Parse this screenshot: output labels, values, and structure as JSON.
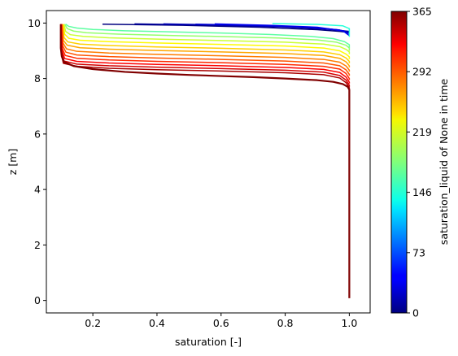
{
  "chart_data": {
    "type": "line",
    "title": "",
    "xlabel": "saturation [-]",
    "ylabel": "z [m]",
    "xlim": [
      0.055,
      1.065
    ],
    "ylim": [
      -0.45,
      10.45
    ],
    "grid": false,
    "x_ticks": [
      {
        "value": 0.2,
        "label": "0.2"
      },
      {
        "value": 0.4,
        "label": "0.4"
      },
      {
        "value": 0.6,
        "label": "0.6"
      },
      {
        "value": 0.8,
        "label": "0.8"
      },
      {
        "value": 1.0,
        "label": "1.0"
      }
    ],
    "y_ticks": [
      {
        "value": 0,
        "label": "0"
      },
      {
        "value": 2,
        "label": "2"
      },
      {
        "value": 4,
        "label": "4"
      },
      {
        "value": 6,
        "label": "6"
      },
      {
        "value": 8,
        "label": "8"
      },
      {
        "value": 10,
        "label": "10"
      }
    ],
    "colorbar": {
      "label": "saturation_liquid of None in time",
      "colormap": "jet",
      "range": [
        0,
        365
      ],
      "ticks": [
        {
          "value": 0,
          "label": "0"
        },
        {
          "value": 73,
          "label": "73"
        },
        {
          "value": 146,
          "label": "146"
        },
        {
          "value": 219,
          "label": "219"
        },
        {
          "value": 292,
          "label": "292"
        },
        {
          "value": 365,
          "label": "365"
        }
      ]
    },
    "series": [
      {
        "time": 0,
        "x": [
          0.23,
          0.48,
          0.72,
          0.9,
          0.97,
          1.0
        ],
        "y": [
          9.96,
          9.92,
          9.85,
          9.76,
          9.7,
          9.66
        ]
      },
      {
        "time": 10,
        "x": [
          0.33,
          0.55,
          0.8,
          0.93,
          1.0
        ],
        "y": [
          9.97,
          9.93,
          9.86,
          9.78,
          9.7
        ]
      },
      {
        "time": 20,
        "x": [
          0.42,
          0.62,
          0.85,
          0.96,
          1.0
        ],
        "y": [
          9.97,
          9.93,
          9.85,
          9.76,
          9.68
        ]
      },
      {
        "time": 30,
        "x": [
          0.52,
          0.7,
          0.88,
          0.97,
          1.0
        ],
        "y": [
          9.96,
          9.92,
          9.85,
          9.75,
          9.62
        ]
      },
      {
        "time": 40,
        "x": [
          0.58,
          0.75,
          0.9,
          0.98,
          1.0
        ],
        "y": [
          9.97,
          9.92,
          9.85,
          9.72,
          9.55
        ]
      },
      {
        "time": 150,
        "x": [
          0.76,
          0.9,
          0.98,
          1.0,
          1.0
        ],
        "y": [
          9.98,
          9.95,
          9.9,
          9.8,
          9.5
        ]
      },
      {
        "time": 170,
        "x": [
          0.115,
          0.125,
          0.15,
          0.2,
          0.3,
          0.45,
          0.6,
          0.75,
          0.88,
          0.95,
          0.985,
          1.0,
          1.0
        ],
        "y": [
          9.96,
          9.88,
          9.82,
          9.77,
          9.72,
          9.68,
          9.64,
          9.59,
          9.52,
          9.44,
          9.33,
          9.22,
          9.1
        ]
      },
      {
        "time": 190,
        "x": [
          0.112,
          0.12,
          0.14,
          0.18,
          0.28,
          0.45,
          0.62,
          0.78,
          0.9,
          0.96,
          0.99,
          1.0,
          1.0
        ],
        "y": [
          9.96,
          9.8,
          9.71,
          9.65,
          9.6,
          9.55,
          9.51,
          9.46,
          9.39,
          9.31,
          9.2,
          9.1,
          9.0
        ]
      },
      {
        "time": 210,
        "x": [
          0.11,
          0.115,
          0.13,
          0.17,
          0.25,
          0.4,
          0.6,
          0.8,
          0.92,
          0.97,
          0.99,
          1.0,
          1.0
        ],
        "y": [
          9.96,
          9.7,
          9.58,
          9.52,
          9.47,
          9.42,
          9.37,
          9.31,
          9.24,
          9.15,
          9.05,
          8.96,
          8.88
        ]
      },
      {
        "time": 230,
        "x": [
          0.108,
          0.112,
          0.125,
          0.16,
          0.25,
          0.4,
          0.6,
          0.8,
          0.92,
          0.97,
          0.99,
          1.0,
          1.0
        ],
        "y": [
          9.96,
          9.6,
          9.45,
          9.38,
          9.33,
          9.28,
          9.23,
          9.17,
          9.1,
          9.0,
          8.88,
          8.78,
          8.7
        ]
      },
      {
        "time": 245,
        "x": [
          0.106,
          0.11,
          0.122,
          0.16,
          0.25,
          0.4,
          0.6,
          0.8,
          0.92,
          0.97,
          0.99,
          1.0,
          1.0
        ],
        "y": [
          9.96,
          9.48,
          9.32,
          9.24,
          9.19,
          9.14,
          9.09,
          9.03,
          8.96,
          8.86,
          8.74,
          8.62,
          8.55
        ]
      },
      {
        "time": 260,
        "x": [
          0.105,
          0.108,
          0.12,
          0.16,
          0.25,
          0.4,
          0.6,
          0.8,
          0.92,
          0.97,
          0.99,
          1.0,
          1.0
        ],
        "y": [
          9.96,
          9.38,
          9.2,
          9.11,
          9.06,
          9.01,
          8.96,
          8.9,
          8.83,
          8.73,
          8.6,
          8.46,
          8.4
        ]
      },
      {
        "time": 275,
        "x": [
          0.104,
          0.107,
          0.118,
          0.15,
          0.25,
          0.4,
          0.6,
          0.8,
          0.92,
          0.97,
          0.99,
          1.0,
          1.0
        ],
        "y": [
          9.96,
          9.28,
          9.07,
          8.98,
          8.92,
          8.87,
          8.82,
          8.76,
          8.69,
          8.59,
          8.45,
          8.3,
          8.25
        ]
      },
      {
        "time": 290,
        "x": [
          0.103,
          0.106,
          0.116,
          0.15,
          0.25,
          0.4,
          0.6,
          0.8,
          0.92,
          0.97,
          0.99,
          1.0,
          1.0
        ],
        "y": [
          9.96,
          9.18,
          8.95,
          8.85,
          8.79,
          8.74,
          8.69,
          8.63,
          8.56,
          8.46,
          8.31,
          8.15,
          8.1
        ]
      },
      {
        "time": 305,
        "x": [
          0.102,
          0.105,
          0.114,
          0.15,
          0.25,
          0.4,
          0.6,
          0.8,
          0.92,
          0.97,
          0.99,
          1.0,
          1.0
        ],
        "y": [
          9.96,
          9.08,
          8.83,
          8.73,
          8.67,
          8.62,
          8.57,
          8.51,
          8.44,
          8.34,
          8.18,
          8.0,
          7.95
        ]
      },
      {
        "time": 320,
        "x": [
          0.101,
          0.104,
          0.112,
          0.15,
          0.25,
          0.4,
          0.6,
          0.8,
          0.92,
          0.97,
          0.99,
          1.0,
          1.0
        ],
        "y": [
          9.96,
          9.0,
          8.72,
          8.62,
          8.56,
          8.51,
          8.46,
          8.4,
          8.33,
          8.22,
          8.05,
          7.87,
          7.82
        ]
      },
      {
        "time": 335,
        "x": [
          0.1,
          0.103,
          0.11,
          0.15,
          0.25,
          0.4,
          0.6,
          0.8,
          0.92,
          0.97,
          0.99,
          1.0,
          1.0
        ],
        "y": [
          9.96,
          8.92,
          8.63,
          8.52,
          8.46,
          8.41,
          8.36,
          8.3,
          8.23,
          8.11,
          7.94,
          7.76,
          7.7
        ]
      },
      {
        "time": 350,
        "x": [
          0.1,
          0.102,
          0.108,
          0.15,
          0.25,
          0.4,
          0.6,
          0.8,
          0.92,
          0.97,
          0.99,
          1.0,
          1.0
        ],
        "y": [
          9.96,
          8.86,
          8.55,
          8.44,
          8.37,
          8.32,
          8.27,
          8.21,
          8.14,
          8.02,
          7.85,
          7.67,
          7.62
        ]
      },
      {
        "time": 365,
        "x": [
          0.1,
          0.1,
          0.103,
          0.11,
          0.14,
          0.2,
          0.3,
          0.4,
          0.5,
          0.6,
          0.7,
          0.8,
          0.9,
          0.95,
          0.98,
          0.995,
          1.0,
          1.0,
          1.0
        ],
        "y": [
          9.96,
          9.1,
          8.8,
          8.6,
          8.45,
          8.34,
          8.24,
          8.18,
          8.13,
          8.09,
          8.05,
          8.0,
          7.94,
          7.88,
          7.8,
          7.7,
          7.6,
          4.0,
          0.08
        ]
      }
    ]
  }
}
